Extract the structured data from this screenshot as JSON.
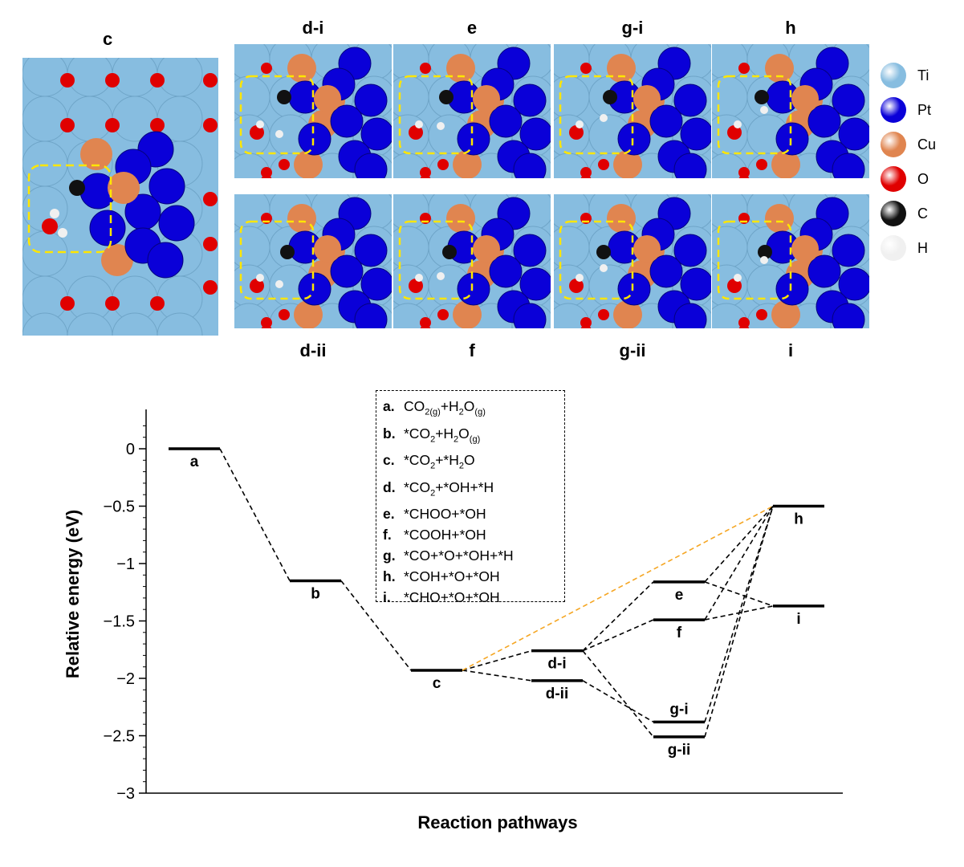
{
  "structures": {
    "panel_c_title": "c",
    "panels": [
      {
        "id": "d-i",
        "label": "d-i"
      },
      {
        "id": "e",
        "label": "e"
      },
      {
        "id": "g-i",
        "label": "g-i"
      },
      {
        "id": "h",
        "label": "h"
      },
      {
        "id": "d-ii",
        "label": "d-ii"
      },
      {
        "id": "f",
        "label": "f"
      },
      {
        "id": "g-ii",
        "label": "g-ii"
      },
      {
        "id": "i",
        "label": "i"
      }
    ]
  },
  "atom_legend": [
    {
      "label": "Ti",
      "color": "#87bde0"
    },
    {
      "label": "Pt",
      "color": "#0a00d8"
    },
    {
      "label": "Cu",
      "color": "#e08550"
    },
    {
      "label": "O",
      "color": "#e00000"
    },
    {
      "label": "C",
      "color": "#111111"
    },
    {
      "label": "H",
      "color": "#f0f0f0"
    }
  ],
  "species_key": [
    {
      "letter": "a.",
      "html": "CO<sub>2(g)</sub>+H<sub>2</sub>O<sub>(g)</sub>"
    },
    {
      "letter": "b.",
      "html": "*CO<sub>2</sub>+H<sub>2</sub>O<sub>(g)</sub>"
    },
    {
      "letter": "c.",
      "html": "*CO<sub>2</sub>+*H<sub>2</sub>O"
    },
    {
      "letter": "d.",
      "html": "*CO<sub>2</sub>+*OH+*H"
    },
    {
      "letter": "e.",
      "html": "*CHOO+*OH"
    },
    {
      "letter": "f.",
      "html": "*COOH+*OH"
    },
    {
      "letter": "g.",
      "html": "*CO+*O+*OH+*H"
    },
    {
      "letter": "h.",
      "html": "*COH+*O+*OH"
    },
    {
      "letter": "i.",
      "html": "*CHO+*O+*OH"
    }
  ],
  "chart_data": {
    "type": "line",
    "title": "",
    "xlabel": "Reaction pathways",
    "ylabel": "Relative energy (eV)",
    "ylim": [
      -3,
      0.2
    ],
    "yticks": [
      0,
      -0.5,
      -1,
      -1.5,
      -2,
      -2.5,
      -3
    ],
    "ytick_labels": [
      "0",
      "-0.5",
      "-1",
      "-1.5",
      "-2",
      "-2.5",
      "-3"
    ],
    "levels": [
      {
        "label": "a",
        "pos": 1,
        "energy": 0.0,
        "label_side": "below"
      },
      {
        "label": "b",
        "pos": 2,
        "energy": -1.15,
        "label_side": "below"
      },
      {
        "label": "c",
        "pos": 3,
        "energy": -1.93,
        "label_side": "below"
      },
      {
        "label": "d-i",
        "pos": 4,
        "energy": -1.76,
        "label_side": "below"
      },
      {
        "label": "d-ii",
        "pos": 4,
        "energy": -2.02,
        "label_side": "below"
      },
      {
        "label": "e",
        "pos": 5,
        "energy": -1.16,
        "label_side": "below"
      },
      {
        "label": "f",
        "pos": 5,
        "energy": -1.49,
        "label_side": "below"
      },
      {
        "label": "g-i",
        "pos": 5,
        "energy": -2.38,
        "label_side": "above"
      },
      {
        "label": "g-ii",
        "pos": 5,
        "energy": -2.51,
        "label_side": "below"
      },
      {
        "label": "h",
        "pos": 6,
        "energy": -0.5,
        "label_side": "below"
      },
      {
        "label": "i",
        "pos": 6,
        "energy": -1.37,
        "label_side": "below"
      }
    ],
    "connections": [
      {
        "from": "a",
        "to": "b",
        "color": "#000000"
      },
      {
        "from": "b",
        "to": "c",
        "color": "#000000"
      },
      {
        "from": "c",
        "to": "d-i",
        "color": "#000000"
      },
      {
        "from": "c",
        "to": "d-ii",
        "color": "#000000"
      },
      {
        "from": "c",
        "to": "h",
        "color": "#f5a623"
      },
      {
        "from": "d-i",
        "to": "e",
        "color": "#000000"
      },
      {
        "from": "d-i",
        "to": "f",
        "color": "#000000"
      },
      {
        "from": "d-i",
        "to": "g-ii",
        "color": "#000000"
      },
      {
        "from": "d-ii",
        "to": "g-i",
        "color": "#000000"
      },
      {
        "from": "e",
        "to": "h",
        "color": "#000000"
      },
      {
        "from": "e",
        "to": "i",
        "color": "#000000"
      },
      {
        "from": "f",
        "to": "h",
        "color": "#000000"
      },
      {
        "from": "f",
        "to": "i",
        "color": "#000000"
      },
      {
        "from": "g-i",
        "to": "h",
        "color": "#000000"
      },
      {
        "from": "g-ii",
        "to": "h",
        "color": "#000000"
      }
    ]
  }
}
